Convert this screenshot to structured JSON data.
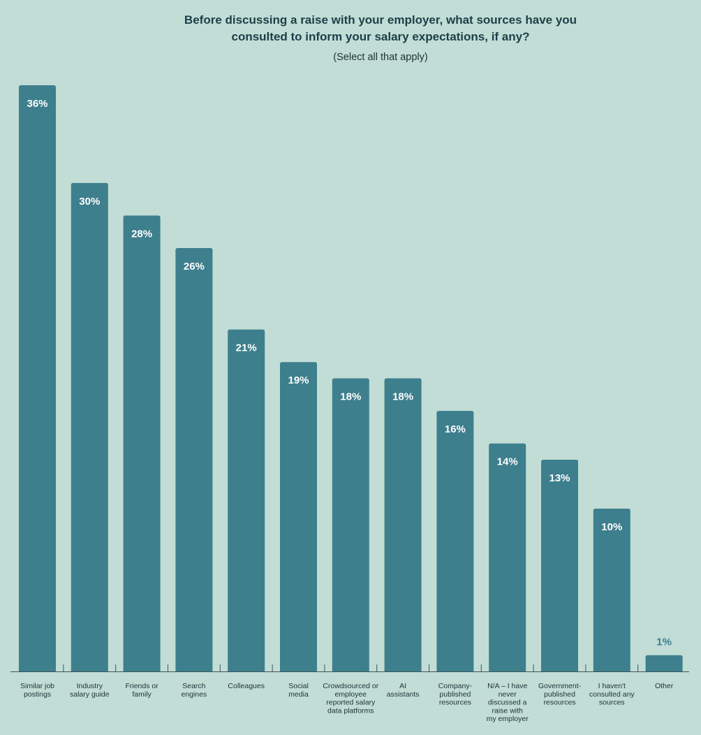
{
  "colors": {
    "background": "#c1ddd6",
    "bar": "#3e7f8d",
    "bar_label_inside": "#ffffff",
    "bar_label_outside": "#3e7f8d",
    "title": "#1c3f47",
    "text": "#1f3035",
    "axis": "#3f5459"
  },
  "chart_data": {
    "type": "bar",
    "title": "Before discussing a raise with your employer, what sources have you consulted to inform your salary expectations, if any?",
    "subtitle": "(Select all that apply)",
    "xlabel": "",
    "ylabel": "",
    "ylim": [
      0,
      36
    ],
    "grid": false,
    "legend": "none",
    "value_suffix": "%",
    "categories": [
      "Similar job postings",
      "Industry salary guide",
      "Friends or family",
      "Search engines",
      "Colleagues",
      "Social media",
      "Crowdsourced or employee reported salary data platforms",
      "AI assistants",
      "Company-published resources",
      "N/A – I have never discussed a raise with my employer",
      "Government-published resources",
      "I haven't consulted any sources",
      "Other"
    ],
    "category_label_lines": [
      [
        "Similar job",
        "postings"
      ],
      [
        "Industry",
        "salary guide"
      ],
      [
        "Friends or",
        "family"
      ],
      [
        "Search",
        "engines"
      ],
      [
        "Colleagues"
      ],
      [
        "Social",
        "media"
      ],
      [
        "Crowdsourced or",
        "employee",
        "reported salary",
        "data platforms"
      ],
      [
        "AI",
        "assistants"
      ],
      [
        "Company-",
        "published",
        "resources"
      ],
      [
        "N/A – I have",
        "never",
        "discussed a",
        "raise with",
        "my employer"
      ],
      [
        "Government-",
        "published",
        "resources"
      ],
      [
        "I haven't",
        "consulted any",
        "sources"
      ],
      [
        "Other"
      ]
    ],
    "values": [
      36,
      30,
      28,
      26,
      21,
      19,
      18,
      18,
      16,
      14,
      13,
      10,
      1
    ],
    "data_labels": [
      "36%",
      "30%",
      "28%",
      "26%",
      "21%",
      "19%",
      "18%",
      "18%",
      "16%",
      "14%",
      "13%",
      "10%",
      "1%"
    ]
  }
}
